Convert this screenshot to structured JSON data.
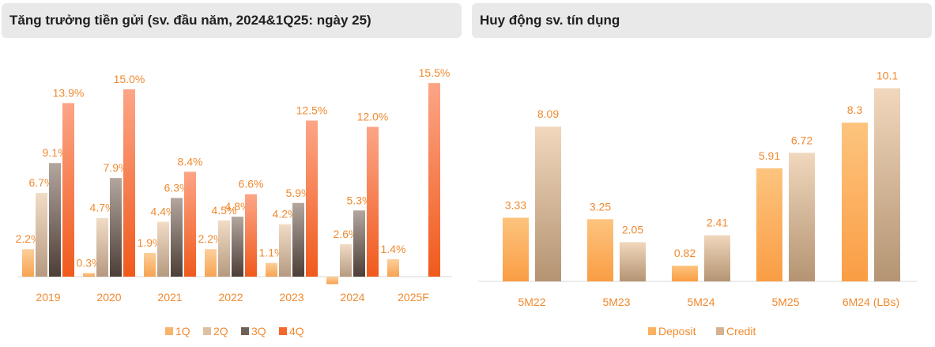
{
  "chart_data": [
    {
      "type": "bar",
      "title": "Tăng trưởng tiền gửi (sv. đầu năm, 2024&1Q25: ngày 25)",
      "categories": [
        "2019",
        "2020",
        "2021",
        "2022",
        "2023",
        "2024",
        "2025F"
      ],
      "series": [
        {
          "name": "1Q",
          "values": [
            2.2,
            0.3,
            1.9,
            2.2,
            1.1,
            -0.6,
            1.4
          ],
          "labels": [
            "2.2%",
            "0.3%",
            "1.9%",
            "2.2%",
            "1.1%",
            "",
            "1.4%"
          ]
        },
        {
          "name": "2Q",
          "values": [
            6.7,
            4.7,
            4.4,
            4.5,
            4.2,
            2.6,
            null
          ],
          "labels": [
            "6.7%",
            "4.7%",
            "4.4%",
            "4.5%",
            "4.2%",
            "2.6%",
            ""
          ]
        },
        {
          "name": "3Q",
          "values": [
            9.1,
            7.9,
            6.3,
            4.8,
            5.9,
            5.3,
            null
          ],
          "labels": [
            "9.1%",
            "7.9%",
            "6.3%",
            "4.8%",
            "5.9%",
            "5.3%",
            ""
          ]
        },
        {
          "name": "4Q",
          "values": [
            13.9,
            15.0,
            8.4,
            6.6,
            12.5,
            12.0,
            15.5
          ],
          "labels": [
            "13.9%",
            "15.0%",
            "8.4%",
            "6.6%",
            "12.5%",
            "12.0%",
            "15.5%"
          ]
        }
      ],
      "ylim": [
        -1,
        16
      ],
      "legend": "bottom",
      "colors": {
        "1Q": "#f9b46a",
        "2Q": "#dcc0a4",
        "3Q": "#6f6058",
        "4Q": "#f4682e",
        "label": "#f08a30"
      }
    },
    {
      "type": "bar",
      "title": "Huy động sv. tín dụng",
      "categories": [
        "5M22",
        "5M23",
        "5M24",
        "5M25",
        "6M24 (LBs)"
      ],
      "series": [
        {
          "name": "Deposit",
          "values": [
            3.33,
            3.25,
            0.82,
            5.91,
            8.3
          ],
          "labels": [
            "3.33",
            "3.25",
            "0.82",
            "5.91",
            "8.3"
          ]
        },
        {
          "name": "Credit",
          "values": [
            8.09,
            2.05,
            2.41,
            6.72,
            10.1
          ],
          "labels": [
            "8.09",
            "2.05",
            "2.41",
            "6.72",
            "10.1"
          ]
        }
      ],
      "ylim": [
        0,
        11
      ],
      "legend": "bottom",
      "colors": {
        "Deposit": "#fbb062",
        "Credit": "#d5b392",
        "label": "#f08a30"
      }
    }
  ]
}
